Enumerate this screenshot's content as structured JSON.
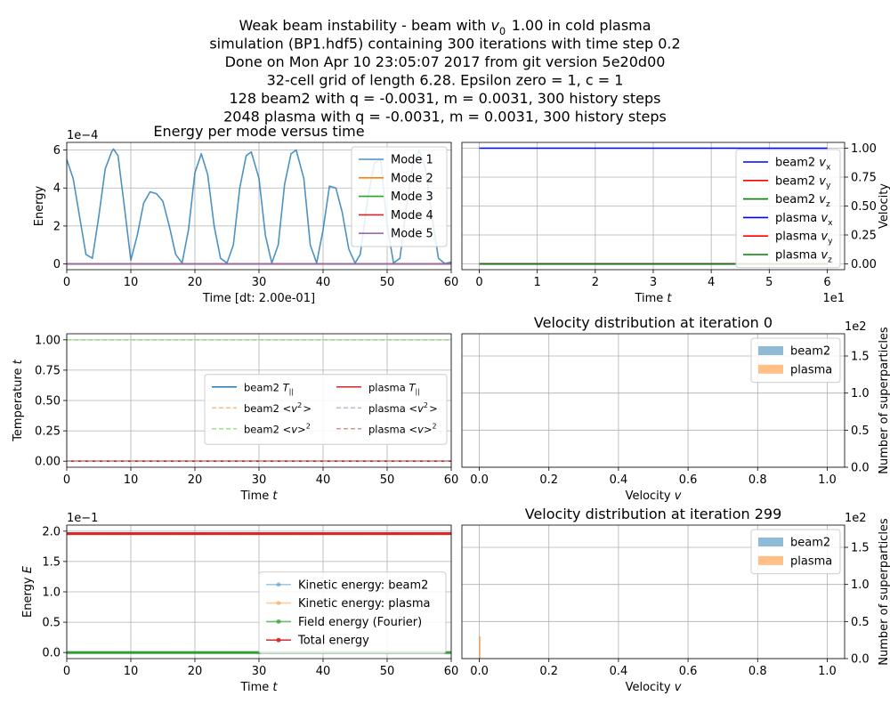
{
  "figure": {
    "suptitle_lines": [
      "Weak beam instability - beam with $v_0$ 1.00 in cold plasma",
      "simulation (BP1.hdf5) containing 300 iterations with time step 0.2",
      "Done on Mon Apr 10 23:05:07 2017 from git version 5e20d00",
      "32-cell grid of length 6.28. Epsilon zero = 1, c = 1",
      "128 beam2 with q = -0.0031, m = 0.0031, 300 history steps",
      "2048 plasma with q = -0.0031, m = 0.0031, 300 history steps"
    ]
  },
  "chart_data": [
    {
      "id": "mode-energy",
      "type": "line",
      "title": "Energy per mode versus time",
      "xlabel": "Time [dt: 2.00e-01]",
      "ylabel": "Energy",
      "offset_text": "1e−4",
      "xlim": [
        0,
        60
      ],
      "ylim": [
        -0.3,
        6.4
      ],
      "xticks": [
        "0",
        "10",
        "20",
        "30",
        "40",
        "50",
        "60"
      ],
      "yticks": [
        "0",
        "2",
        "4",
        "6"
      ],
      "grid": true,
      "legend": "top-right",
      "series": [
        {
          "name": "Mode 1",
          "color": "#1f77b4",
          "x": [
            0,
            1,
            2,
            3,
            4,
            5,
            6,
            7,
            7.3,
            8,
            9,
            10,
            11,
            12,
            13,
            14,
            15,
            16,
            17,
            18,
            19,
            20,
            21,
            22,
            23,
            24,
            25,
            26,
            27,
            28,
            28.8,
            30,
            31,
            32,
            33,
            34,
            35,
            35.8,
            37,
            38,
            39,
            40,
            41,
            42,
            43,
            44,
            45,
            45.8,
            47,
            48,
            49,
            50,
            51,
            52,
            53,
            54,
            55,
            56,
            57,
            58,
            59,
            60
          ],
          "y": [
            5.5,
            4.5,
            2.5,
            0.5,
            0.3,
            2.5,
            5.0,
            5.9,
            6.05,
            5.7,
            3.0,
            0.2,
            1.5,
            3.2,
            3.8,
            3.7,
            3.3,
            2.0,
            0.5,
            0.05,
            1.8,
            4.8,
            5.8,
            4.7,
            2.0,
            0.3,
            0.05,
            1.0,
            4.0,
            5.7,
            5.9,
            4.5,
            1.5,
            0.05,
            1.0,
            4.2,
            5.8,
            6.0,
            4.5,
            1.0,
            0.05,
            1.8,
            4.1,
            4.0,
            2.7,
            0.8,
            0.05,
            0.5,
            3.5,
            5.3,
            5.5,
            2.0,
            0.05,
            0.3,
            3.0,
            5.2,
            6.0,
            5.0,
            2.5,
            0.3,
            0.02,
            0.1
          ]
        },
        {
          "name": "Mode 2",
          "color": "#ff7f0e",
          "x": [
            0,
            60
          ],
          "y": [
            0.005,
            0.005
          ]
        },
        {
          "name": "Mode 3",
          "color": "#2ca02c",
          "x": [
            0,
            60
          ],
          "y": [
            0.005,
            0.005
          ]
        },
        {
          "name": "Mode 4",
          "color": "#d62728",
          "x": [
            0,
            60
          ],
          "y": [
            0.005,
            0.005
          ]
        },
        {
          "name": "Mode 5",
          "color": "#9467bd",
          "x": [
            0,
            60
          ],
          "y": [
            0.005,
            0.005
          ]
        }
      ]
    },
    {
      "id": "mean-velocity",
      "type": "line",
      "title": "",
      "xlabel": "Time $t$",
      "ylabel": "Velocity",
      "offset_text": "1e1",
      "xlim": [
        -0.3,
        6.3
      ],
      "ylim": [
        -0.05,
        1.05
      ],
      "xticks": [
        "0",
        "1",
        "2",
        "3",
        "4",
        "5",
        "6"
      ],
      "yticks": [
        "0.00",
        "0.25",
        "0.50",
        "0.75",
        "1.00"
      ],
      "grid": true,
      "legend": "top-right",
      "series": [
        {
          "name": "beam2 $v_x$",
          "color": "#0000ff",
          "x": [
            0,
            6
          ],
          "y": [
            1,
            1
          ]
        },
        {
          "name": "beam2 $v_y$",
          "color": "#ff0000",
          "x": [
            0,
            6
          ],
          "y": [
            0,
            0
          ]
        },
        {
          "name": "beam2 $v_z$",
          "color": "#008000",
          "x": [
            0,
            6
          ],
          "y": [
            0,
            0
          ]
        },
        {
          "name": "plasma $v_x$",
          "color": "#0000ff",
          "x": [
            0,
            6
          ],
          "y": [
            0,
            0
          ]
        },
        {
          "name": "plasma $v_y$",
          "color": "#ff0000",
          "x": [
            0,
            6
          ],
          "y": [
            0,
            0
          ]
        },
        {
          "name": "plasma $v_z$",
          "color": "#008000",
          "x": [
            0,
            6
          ],
          "y": [
            0,
            0
          ]
        }
      ]
    },
    {
      "id": "temperature",
      "type": "line",
      "title": "",
      "xlabel": "Time $t$",
      "ylabel": "Temperature $t$",
      "xlim": [
        0,
        60
      ],
      "ylim": [
        -0.05,
        1.05
      ],
      "xticks": [
        "0",
        "10",
        "20",
        "30",
        "40",
        "50",
        "60"
      ],
      "yticks": [
        "0.00",
        "0.25",
        "0.50",
        "0.75",
        "1.00"
      ],
      "grid": true,
      "legend": "center-right",
      "series": [
        {
          "name": "beam2 $T_{||}$",
          "color": "#1f77b4",
          "dash": false,
          "x": [
            0,
            60
          ],
          "y": [
            0,
            0
          ]
        },
        {
          "name": "beam2 $<v^2>$",
          "color": "#ffbb78",
          "dash": true,
          "x": [
            0,
            60
          ],
          "y": [
            1,
            1
          ]
        },
        {
          "name": "beam2 $<v>^2$",
          "color": "#98df8a",
          "dash": true,
          "x": [
            0,
            60
          ],
          "y": [
            1,
            1
          ]
        },
        {
          "name": "plasma $T_{||}$",
          "color": "#d62728",
          "dash": false,
          "x": [
            0,
            60
          ],
          "y": [
            0,
            0
          ]
        },
        {
          "name": "plasma $<v^2>$",
          "color": "#c5b0d5",
          "dash": true,
          "x": [
            0,
            60
          ],
          "y": [
            0,
            0
          ]
        },
        {
          "name": "plasma $<v>^2$",
          "color": "#c49c94",
          "dash": true,
          "x": [
            0,
            60
          ],
          "y": [
            0,
            0
          ]
        }
      ]
    },
    {
      "id": "velocity-distribution-0",
      "type": "bar",
      "title": "Velocity distribution at iteration 0",
      "xlabel": "Velocity $v$",
      "ylabel": "Number of superparticles",
      "offset_text": "1e2",
      "xlim": [
        -0.05,
        1.05
      ],
      "ylim": [
        0,
        1.8
      ],
      "xticks": [
        "0.0",
        "0.2",
        "0.4",
        "0.6",
        "0.8",
        "1.0"
      ],
      "yticks": [
        "0.0",
        "0.5",
        "1.0",
        "1.5"
      ],
      "grid": true,
      "legend": "top-right",
      "series": [
        {
          "name": "beam2",
          "color": "#1f77b4",
          "bins": []
        },
        {
          "name": "plasma",
          "color": "#ff7f0e",
          "bins": []
        }
      ]
    },
    {
      "id": "energy",
      "type": "line",
      "title": "",
      "xlabel": "Time $t$",
      "ylabel": "Energy $E$",
      "offset_text": "1e−1",
      "xlim": [
        0,
        60
      ],
      "ylim": [
        -0.1,
        2.1
      ],
      "xticks": [
        "0",
        "10",
        "20",
        "30",
        "40",
        "50",
        "60"
      ],
      "yticks": [
        "0.0",
        "0.5",
        "1.0",
        "1.5",
        "2.0"
      ],
      "grid": true,
      "legend": "bottom-right",
      "series": [
        {
          "name": "Kinetic energy: beam2",
          "color": "#1f77b4",
          "alpha": 0.4,
          "x": [
            0,
            60
          ],
          "y": [
            0.0,
            0.0
          ]
        },
        {
          "name": "Kinetic energy: plasma",
          "color": "#ff7f0e",
          "alpha": 0.4,
          "x": [
            0,
            60
          ],
          "y": [
            1.96,
            1.96
          ]
        },
        {
          "name": "Field energy (Fourier)",
          "color": "#2ca02c",
          "alpha": 0.7,
          "x": [
            0,
            60
          ],
          "y": [
            0.0,
            0.0
          ]
        },
        {
          "name": "Total energy",
          "color": "#d62728",
          "alpha": 0.9,
          "x": [
            0,
            60
          ],
          "y": [
            1.96,
            1.96
          ]
        }
      ]
    },
    {
      "id": "velocity-distribution-299",
      "type": "bar",
      "title": "Velocity distribution at iteration 299",
      "xlabel": "Velocity $v$",
      "ylabel": "Number of superparticles",
      "offset_text": "1e2",
      "xlim": [
        -0.05,
        1.05
      ],
      "ylim": [
        0,
        1.8
      ],
      "xticks": [
        "0.0",
        "0.2",
        "0.4",
        "0.6",
        "0.8",
        "1.0"
      ],
      "yticks": [
        "0.0",
        "0.5",
        "1.0",
        "1.5"
      ],
      "grid": true,
      "legend": "top-right",
      "series": [
        {
          "name": "beam2",
          "color": "#1f77b4",
          "bins": []
        },
        {
          "name": "plasma",
          "color": "#ff7f0e",
          "bins": [
            {
              "x0": -0.001,
              "x1": 0.004,
              "v": 0.3
            }
          ]
        }
      ]
    }
  ]
}
